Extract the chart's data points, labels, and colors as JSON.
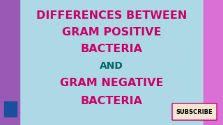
{
  "bg_color": "#add8e6",
  "left_strip_color": "#9b59b6",
  "right_strip_color": "#da70d6",
  "main_text_color": "#cc0066",
  "and_text_color": "#006666",
  "lines": [
    "DIFFERENCES BETWEEN",
    "GRAM POSITIVE",
    "BACTERIA",
    "AND",
    "GRAM NEGATIVE",
    "BACTERIA"
  ],
  "line_colors": [
    "#cc0066",
    "#cc0066",
    "#cc0066",
    "#006666",
    "#cc0066",
    "#cc0066"
  ],
  "subscribe_text": "SUBSCRIBE",
  "subscribe_bg": "#f5e6d3",
  "subscribe_border": "#cc0066",
  "thumbs_up_color": "#1a4f9c",
  "font_size_main": 11.5,
  "font_size_and": 10,
  "font_size_subscribe": 6
}
